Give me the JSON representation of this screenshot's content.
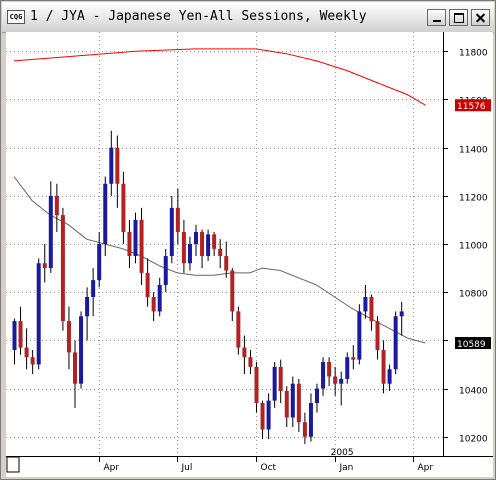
{
  "window": {
    "title": "1 / JYA - Japanese Yen-All Sessions, Weekly",
    "icon_label": "CQG",
    "controls": [
      "minimize",
      "maximize",
      "close"
    ]
  },
  "chart_data": {
    "type": "candlestick",
    "ylim": [
      10120,
      11880
    ],
    "y_ticks": [
      10200,
      10400,
      10600,
      10800,
      11000,
      11200,
      11400,
      11600,
      11800
    ],
    "x_ticks": [
      {
        "label": "Apr",
        "week": 14
      },
      {
        "label": "Jul",
        "week": 27
      },
      {
        "label": "Oct",
        "week": 40
      },
      {
        "label": "Jan",
        "week": 53
      },
      {
        "label": "Apr",
        "week": 66
      }
    ],
    "year_marker": {
      "label": "2005",
      "week": 53
    },
    "price_labels": [
      {
        "text": "11576",
        "value": 11576,
        "color": "#cc0000"
      },
      {
        "text": "10589",
        "value": 10589,
        "color": "#000000"
      }
    ],
    "colors": {
      "up": "#1a1aa0",
      "down": "#b22222",
      "ma_long": "#ff0000",
      "ma_short": "#666666",
      "grid": "#9a9a9a"
    },
    "candles": [
      [
        10560,
        10690,
        10500,
        10680
      ],
      [
        10680,
        10740,
        10540,
        10570
      ],
      [
        10570,
        10650,
        10480,
        10530
      ],
      [
        10530,
        10560,
        10460,
        10500
      ],
      [
        10500,
        10940,
        10480,
        10920
      ],
      [
        10920,
        11000,
        10840,
        10900
      ],
      [
        10900,
        11260,
        10880,
        11200
      ],
      [
        11200,
        11250,
        11050,
        11120
      ],
      [
        11120,
        11150,
        10640,
        10680
      ],
      [
        10680,
        10740,
        10480,
        10550
      ],
      [
        10550,
        10600,
        10320,
        10420
      ],
      [
        10420,
        10720,
        10400,
        10700
      ],
      [
        10700,
        10820,
        10600,
        10780
      ],
      [
        10780,
        10900,
        10700,
        10850
      ],
      [
        10850,
        11050,
        10820,
        11000
      ],
      [
        11000,
        11280,
        10950,
        11250
      ],
      [
        11250,
        11470,
        11200,
        11400
      ],
      [
        11400,
        11450,
        11150,
        11250
      ],
      [
        11250,
        11300,
        11000,
        11050
      ],
      [
        11050,
        11100,
        10900,
        10950
      ],
      [
        10950,
        11130,
        10920,
        11100
      ],
      [
        11100,
        11150,
        10830,
        10880
      ],
      [
        10880,
        10940,
        10740,
        10780
      ],
      [
        10780,
        10800,
        10680,
        10720
      ],
      [
        10720,
        10860,
        10700,
        10830
      ],
      [
        10830,
        10980,
        10800,
        10950
      ],
      [
        10950,
        11200,
        10920,
        11150
      ],
      [
        11150,
        11230,
        11000,
        11050
      ],
      [
        11050,
        11100,
        10880,
        10920
      ],
      [
        10920,
        11030,
        10890,
        11000
      ],
      [
        11000,
        11080,
        10950,
        11050
      ],
      [
        11050,
        11060,
        10900,
        10950
      ],
      [
        10950,
        11060,
        10930,
        11040
      ],
      [
        11040,
        11050,
        10950,
        10980
      ],
      [
        10980,
        11020,
        10900,
        10950
      ],
      [
        10950,
        11010,
        10860,
        10890
      ],
      [
        10890,
        10900,
        10680,
        10720
      ],
      [
        10720,
        10740,
        10540,
        10570
      ],
      [
        10570,
        10620,
        10460,
        10530
      ],
      [
        10530,
        10560,
        10460,
        10490
      ],
      [
        10490,
        10510,
        10300,
        10340
      ],
      [
        10340,
        10350,
        10190,
        10230
      ],
      [
        10230,
        10380,
        10190,
        10350
      ],
      [
        10350,
        10510,
        10320,
        10490
      ],
      [
        10490,
        10520,
        10340,
        10390
      ],
      [
        10390,
        10410,
        10240,
        10280
      ],
      [
        10280,
        10450,
        10240,
        10420
      ],
      [
        10420,
        10440,
        10220,
        10260
      ],
      [
        10260,
        10300,
        10170,
        10200
      ],
      [
        10200,
        10380,
        10180,
        10340
      ],
      [
        10340,
        10420,
        10300,
        10400
      ],
      [
        10400,
        10530,
        10370,
        10510
      ],
      [
        10510,
        10530,
        10410,
        10450
      ],
      [
        10450,
        10490,
        10370,
        10420
      ],
      [
        10420,
        10470,
        10330,
        10440
      ],
      [
        10440,
        10550,
        10420,
        10530
      ],
      [
        10530,
        10580,
        10480,
        10520
      ],
      [
        10520,
        10750,
        10500,
        10720
      ],
      [
        10720,
        10830,
        10690,
        10780
      ],
      [
        10780,
        10790,
        10640,
        10680
      ],
      [
        10680,
        10700,
        10520,
        10560
      ],
      [
        10560,
        10600,
        10380,
        10420
      ],
      [
        10420,
        10500,
        10390,
        10480
      ],
      [
        10480,
        10720,
        10460,
        10700
      ],
      [
        10700,
        10760,
        10620,
        10720
      ]
    ],
    "ma_long": [
      [
        0,
        11760
      ],
      [
        10,
        11780
      ],
      [
        20,
        11800
      ],
      [
        30,
        11810
      ],
      [
        40,
        11810
      ],
      [
        45,
        11790
      ],
      [
        50,
        11760
      ],
      [
        55,
        11720
      ],
      [
        60,
        11670
      ],
      [
        65,
        11620
      ],
      [
        68,
        11576
      ]
    ],
    "ma_short": [
      [
        0,
        11280
      ],
      [
        3,
        11180
      ],
      [
        6,
        11120
      ],
      [
        9,
        11080
      ],
      [
        12,
        11020
      ],
      [
        15,
        11000
      ],
      [
        18,
        10980
      ],
      [
        21,
        10950
      ],
      [
        24,
        10910
      ],
      [
        27,
        10880
      ],
      [
        30,
        10870
      ],
      [
        33,
        10870
      ],
      [
        36,
        10880
      ],
      [
        39,
        10880
      ],
      [
        41,
        10900
      ],
      [
        44,
        10890
      ],
      [
        47,
        10860
      ],
      [
        50,
        10830
      ],
      [
        53,
        10780
      ],
      [
        56,
        10730
      ],
      [
        59,
        10690
      ],
      [
        62,
        10650
      ],
      [
        65,
        10610
      ],
      [
        68,
        10589
      ]
    ]
  }
}
